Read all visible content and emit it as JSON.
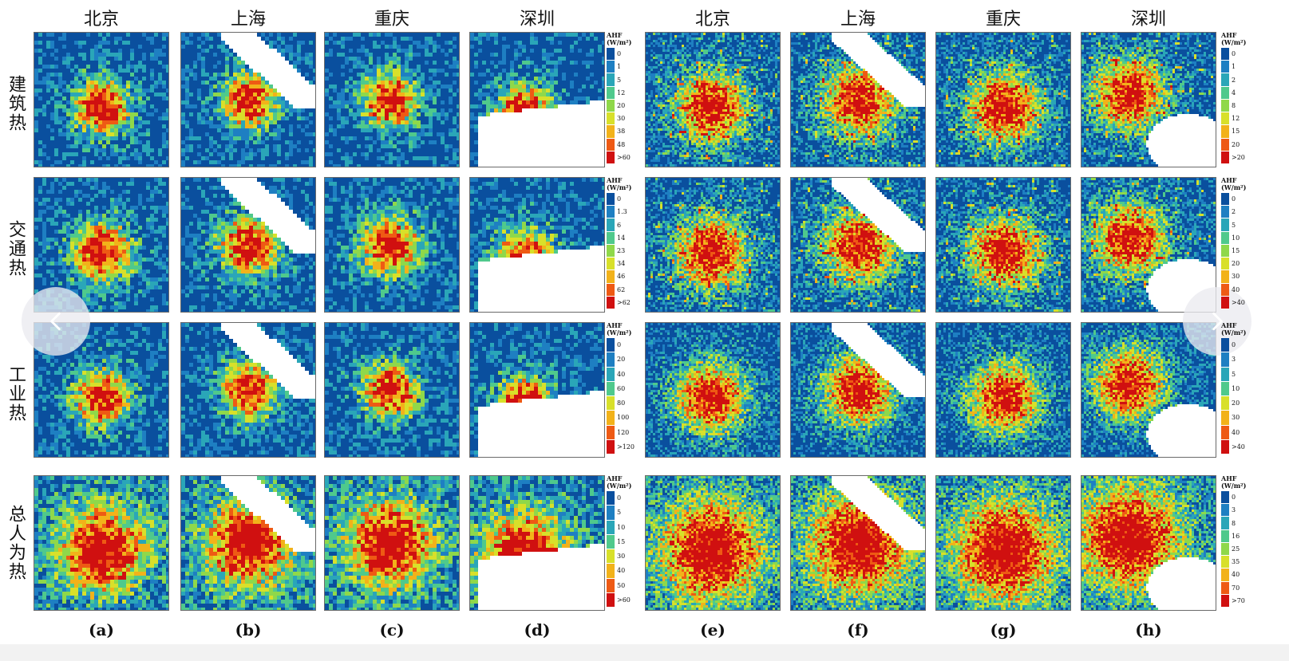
{
  "figure": {
    "column_titles": [
      "北京",
      "上海",
      "重庆",
      "深圳",
      "北京",
      "上海",
      "重庆",
      "深圳"
    ],
    "row_titles": [
      "建筑热",
      "交通热",
      "工业热",
      "总人为热"
    ],
    "panel_labels": [
      "(a)",
      "(b)",
      "(c)",
      "(d)",
      "(e)",
      "(f)",
      "(g)",
      "(h)"
    ],
    "legend_title_line1": "AHF",
    "legend_title_line2": "(W/m²)",
    "legends_left": [
      [
        "0",
        "1",
        "5",
        "12",
        "20",
        "30",
        "38",
        "48",
        ">60"
      ],
      [
        "0",
        "1.3",
        "6",
        "14",
        "23",
        "34",
        "46",
        "62",
        ">62"
      ],
      [
        "0",
        "20",
        "40",
        "60",
        "80",
        "100",
        "120",
        ">120"
      ],
      [
        "0",
        "5",
        "10",
        "15",
        "30",
        "40",
        "50",
        ">60"
      ]
    ],
    "legends_right": [
      [
        "0",
        "1",
        "2",
        "4",
        "8",
        "12",
        "15",
        "20",
        ">20"
      ],
      [
        "0",
        "2",
        "5",
        "10",
        "15",
        "20",
        "30",
        "40",
        ">40"
      ],
      [
        "0",
        "3",
        "5",
        "10",
        "20",
        "30",
        "40",
        ">40"
      ],
      [
        "0",
        "3",
        "8",
        "16",
        "25",
        "35",
        "40",
        "70",
        ">70"
      ]
    ],
    "colorscale": [
      "#0a4f9e",
      "#1e7fc2",
      "#2aa6b8",
      "#4fc98c",
      "#8fd84a",
      "#d8e02a",
      "#f2b21a",
      "#ee5a14",
      "#d01010"
    ],
    "water_color": "#ffffff",
    "background_color": "#0a4f9e"
  },
  "navigation": {
    "prev_icon": "chevron-left-icon",
    "next_icon": "chevron-right-icon"
  }
}
